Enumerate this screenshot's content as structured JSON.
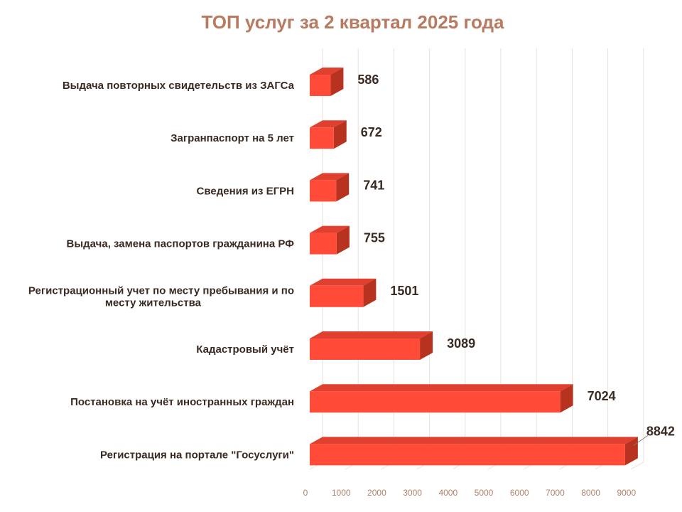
{
  "chart_data": {
    "type": "bar",
    "orientation": "horizontal",
    "title": "ТОП услуг за 2 квартал 2025 года",
    "categories": [
      "Выдача повторных свидетельств из ЗАГСа",
      "Загранпаспорт на 5 лет",
      "Сведения из ЕГРН",
      "Выдача, замена паспортов гражданина РФ",
      "Регистрационный учет по месту пребывания и по месту жительства",
      "Кадастровый учёт",
      "Постановка на учёт иностранных граждан",
      "Регистрация на портале \"Госуслуги\""
    ],
    "category_lines": [
      [
        "Выдача повторных свидетельств из ЗАГСа"
      ],
      [
        "Загранпаспорт на 5 лет"
      ],
      [
        "Сведения из ЕГРН"
      ],
      [
        "Выдача, замена паспортов гражданина РФ"
      ],
      [
        "Регистрационный учет по месту пребывания и по",
        "месту жительства"
      ],
      [
        "Кадастровый учёт"
      ],
      [
        "Постановка на учёт иностранных граждан"
      ],
      [
        "Регистрация на портале \"Госуслуги\""
      ]
    ],
    "values": [
      586,
      672,
      741,
      755,
      1501,
      3089,
      7024,
      8842
    ],
    "value_labels": [
      "586",
      "672",
      "741",
      "755",
      "1501",
      "3089",
      "7024",
      "8842"
    ],
    "xlim": [
      0,
      9000
    ],
    "xticks": [
      0,
      1000,
      2000,
      3000,
      4000,
      5000,
      6000,
      7000,
      8000,
      9000
    ],
    "xtick_labels": [
      "0",
      "1000",
      "2000",
      "3000",
      "4000",
      "5000",
      "6000",
      "7000",
      "8000",
      "9000"
    ],
    "grid": true,
    "legend": "none",
    "bar_style": "3d",
    "colors": {
      "bar_front": "#ff4b37",
      "bar_top": "#e0402f",
      "bar_side": "#b7321f",
      "grid": "#e6e0d8",
      "title": "#b87a60"
    }
  }
}
